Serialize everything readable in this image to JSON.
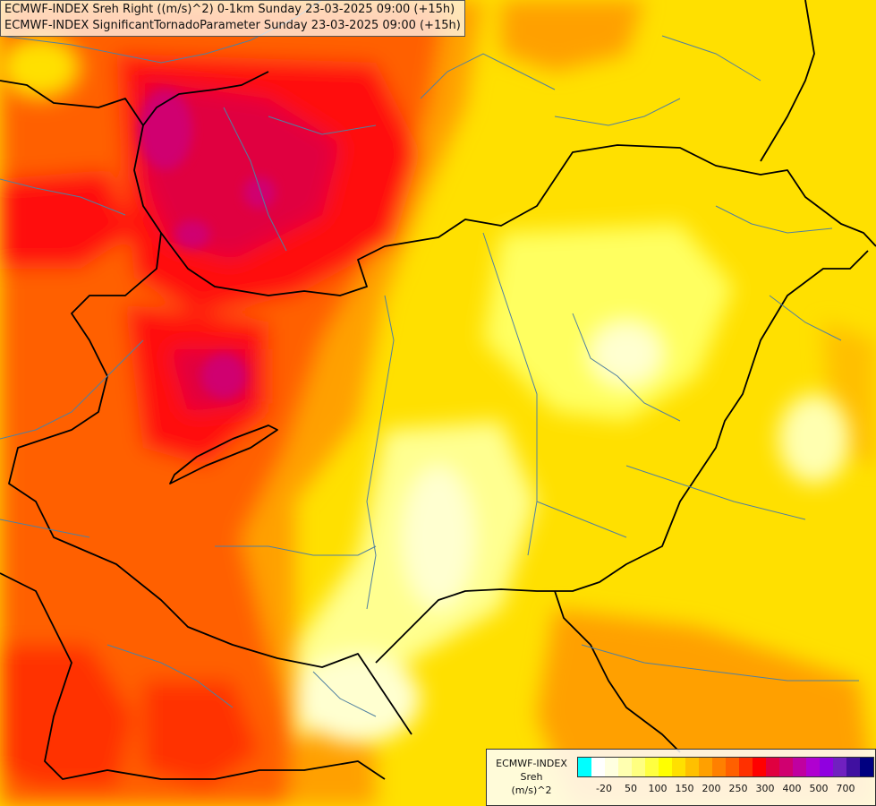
{
  "titles": {
    "line1": "ECMWF-INDEX Sreh Right ((m/s)^2) 0-1km Sunday 23-03-2025 09:00 (+15h)",
    "line2": "ECMWF-INDEX SignificantTornadoParameter Sunday 23-03-2025 09:00 (+15h)"
  },
  "legend": {
    "model": "ECMWF-INDEX",
    "variable": "Sreh",
    "unit": "(m/s)^2",
    "colors": [
      "#00ffff",
      "#ffffff",
      "#ffffe0",
      "#ffffb0",
      "#ffff80",
      "#ffff40",
      "#ffff00",
      "#ffe000",
      "#ffc000",
      "#ffa000",
      "#ff8000",
      "#ff6000",
      "#ff3000",
      "#ff0000",
      "#e00040",
      "#d00070",
      "#c000a0",
      "#b000d0",
      "#9000e0",
      "#7020c0",
      "#4010a0",
      "#000080"
    ],
    "ticks": [
      {
        "label": "-20",
        "index": 1
      },
      {
        "label": "50",
        "index": 3
      },
      {
        "label": "100",
        "index": 5
      },
      {
        "label": "150",
        "index": 7
      },
      {
        "label": "200",
        "index": 9
      },
      {
        "label": "250",
        "index": 11
      },
      {
        "label": "300",
        "index": 13
      },
      {
        "label": "400",
        "index": 15
      },
      {
        "label": "500",
        "index": 17
      },
      {
        "label": "700",
        "index": 19
      }
    ]
  },
  "map_colors": {
    "background": "#ffe000",
    "orange": "#ffa000",
    "dark_orange": "#ff6000",
    "red": "#ff1010",
    "crimson": "#e00040",
    "magenta": "#d00070",
    "pale_yellow": "#ffff90",
    "cream": "#ffffd0",
    "border": "#000000",
    "river": "#5080a0"
  }
}
